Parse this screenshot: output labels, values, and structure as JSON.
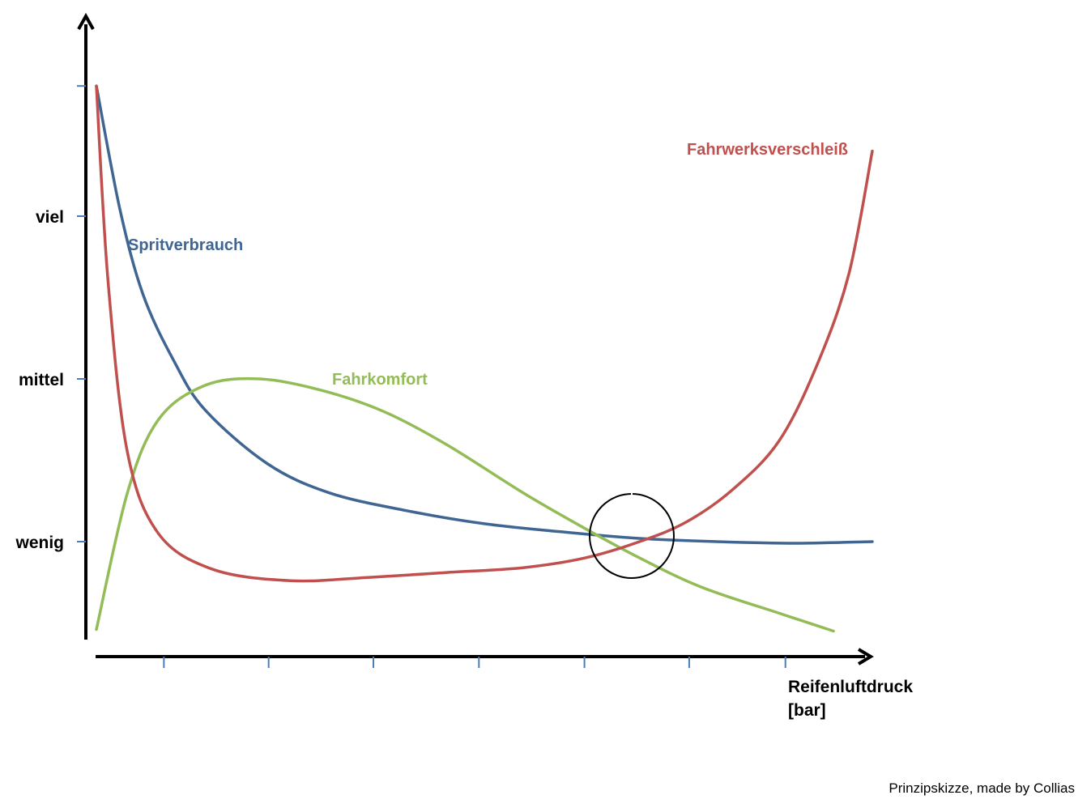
{
  "chart_data": {
    "type": "line",
    "title": "",
    "xlabel": [
      "Reifenluftdruck",
      "[bar]"
    ],
    "ylabel": "",
    "y_tick_labels": [
      {
        "label": "viel",
        "value": 4
      },
      {
        "label": "mittel",
        "value": 3
      },
      {
        "label": "wenig",
        "value": 2
      }
    ],
    "xlim": [
      0,
      10
    ],
    "ylim": [
      0,
      5
    ],
    "x_tick_values": [
      0.87,
      2.22,
      3.57,
      4.93,
      6.29,
      7.64,
      8.88
    ],
    "grid": false,
    "legend": "none",
    "series": [
      {
        "name": "Spritverbrauch",
        "color": "#3f6593",
        "points": [
          [
            0,
            4.8
          ],
          [
            0.3,
            4.05
          ],
          [
            0.6,
            3.52
          ],
          [
            1.0,
            3.11
          ],
          [
            1.4,
            2.81
          ],
          [
            2.2,
            2.48
          ],
          [
            3.0,
            2.3
          ],
          [
            4.0,
            2.19
          ],
          [
            5.0,
            2.11
          ],
          [
            6.0,
            2.06
          ],
          [
            7.0,
            2.02
          ],
          [
            8.0,
            2.0
          ],
          [
            9.0,
            1.99
          ],
          [
            10.0,
            2.0
          ]
        ]
      },
      {
        "name": "Fahrkomfort",
        "color": "#93bc57",
        "points": [
          [
            0,
            1.46
          ],
          [
            0.4,
            2.3
          ],
          [
            0.8,
            2.75
          ],
          [
            1.4,
            2.96
          ],
          [
            2.1,
            3.0
          ],
          [
            2.9,
            2.93
          ],
          [
            3.7,
            2.8
          ],
          [
            4.5,
            2.6
          ],
          [
            5.5,
            2.3
          ],
          [
            6.3,
            2.08
          ],
          [
            7.0,
            1.9
          ],
          [
            7.8,
            1.72
          ],
          [
            8.8,
            1.56
          ],
          [
            9.5,
            1.45
          ]
        ]
      },
      {
        "name": "Fahrwerksverschleiß",
        "color": "#c0504d",
        "points": [
          [
            0,
            4.8
          ],
          [
            0.15,
            3.6
          ],
          [
            0.4,
            2.55
          ],
          [
            0.8,
            2.05
          ],
          [
            1.5,
            1.83
          ],
          [
            2.5,
            1.76
          ],
          [
            3.5,
            1.78
          ],
          [
            4.5,
            1.81
          ],
          [
            5.5,
            1.84
          ],
          [
            6.3,
            1.9
          ],
          [
            7.0,
            2.0
          ],
          [
            7.6,
            2.12
          ],
          [
            8.2,
            2.32
          ],
          [
            8.8,
            2.62
          ],
          [
            9.3,
            3.1
          ],
          [
            9.7,
            3.65
          ],
          [
            10.0,
            4.4
          ]
        ]
      }
    ],
    "annotations": [
      "Prinzipskizze, made by Collias"
    ]
  }
}
